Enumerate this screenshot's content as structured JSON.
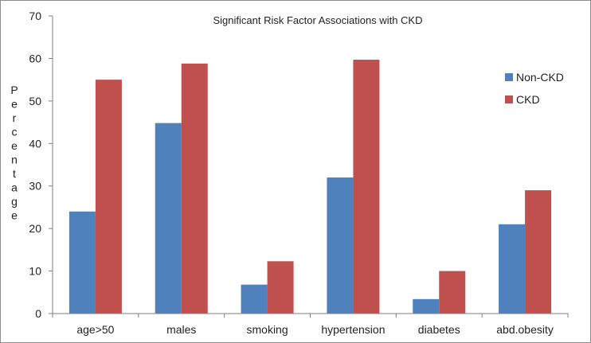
{
  "chart_data": {
    "type": "bar",
    "title": "Significant Risk Factor Associations with CKD",
    "xlabel": "",
    "ylabel": "Percentage",
    "ylim": [
      0,
      70
    ],
    "yticks": [
      "0",
      "10",
      "20",
      "30",
      "40",
      "50",
      "60",
      "70"
    ],
    "categories": [
      "age>50",
      "males",
      "smoking",
      "hypertension",
      "diabetes",
      "abd.obesity"
    ],
    "series": [
      {
        "name": "Non-CKD",
        "color": "#4f81bd",
        "values": [
          24,
          44.8,
          6.8,
          32,
          3.4,
          21
        ]
      },
      {
        "name": "CKD",
        "color": "#c0504d",
        "values": [
          55,
          58.8,
          12.3,
          59.7,
          10,
          29
        ]
      }
    ],
    "grid": false,
    "legend": "right"
  }
}
